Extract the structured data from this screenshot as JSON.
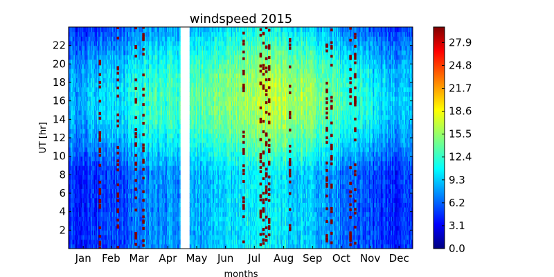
{
  "chart_data": {
    "type": "heatmap",
    "title": "windspeed 2015",
    "xlabel": "months",
    "ylabel": "UT [hr]",
    "x_ticks": [
      "Jan",
      "Feb",
      "Mar",
      "Apr",
      "May",
      "Jun",
      "Jul",
      "Aug",
      "Sep",
      "Oct",
      "Nov",
      "Dec"
    ],
    "y_ticks": [
      2,
      4,
      6,
      8,
      10,
      12,
      14,
      16,
      18,
      20,
      22
    ],
    "ylim": [
      0,
      24
    ],
    "xlim_days": [
      1,
      365
    ],
    "missing_data_days": [
      119,
      128
    ],
    "colorbar": {
      "ticks": [
        0.0,
        3.1,
        6.2,
        9.3,
        12.4,
        15.5,
        18.6,
        21.7,
        24.8,
        27.9
      ],
      "range": [
        0,
        30
      ],
      "colormap": "jet"
    },
    "daily_profile": [
      {
        "day": 1,
        "low": 5,
        "high": 9
      },
      {
        "day": 30,
        "low": 5,
        "high": 10
      },
      {
        "day": 60,
        "low": 6,
        "high": 11
      },
      {
        "day": 90,
        "low": 8,
        "high": 13
      },
      {
        "day": 118,
        "low": 8,
        "high": 13
      },
      {
        "day": 130,
        "low": 9,
        "high": 14
      },
      {
        "day": 160,
        "low": 10,
        "high": 15
      },
      {
        "day": 190,
        "low": 11,
        "high": 16
      },
      {
        "day": 220,
        "low": 11,
        "high": 17
      },
      {
        "day": 250,
        "low": 10,
        "high": 16
      },
      {
        "day": 280,
        "low": 8,
        "high": 14
      },
      {
        "day": 310,
        "low": 6,
        "high": 12
      },
      {
        "day": 340,
        "low": 5,
        "high": 10
      },
      {
        "day": 365,
        "low": 5,
        "high": 9
      }
    ],
    "high_speed_days": [
      34,
      53,
      72,
      80,
      186,
      204,
      207,
      210,
      213,
      235,
      274,
      279,
      299,
      304
    ]
  }
}
